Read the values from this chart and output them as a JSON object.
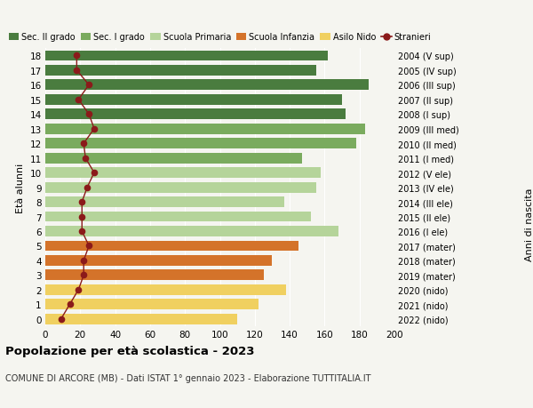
{
  "ages": [
    0,
    1,
    2,
    3,
    4,
    5,
    6,
    7,
    8,
    9,
    10,
    11,
    12,
    13,
    14,
    15,
    16,
    17,
    18
  ],
  "bar_values": [
    110,
    122,
    138,
    125,
    130,
    145,
    168,
    152,
    137,
    155,
    158,
    147,
    178,
    183,
    172,
    170,
    185,
    155,
    162
  ],
  "stranieri": [
    9,
    14,
    19,
    22,
    22,
    25,
    21,
    21,
    21,
    24,
    28,
    23,
    22,
    28,
    25,
    19,
    25,
    18,
    18
  ],
  "right_labels": [
    "2022 (nido)",
    "2021 (nido)",
    "2020 (nido)",
    "2019 (mater)",
    "2018 (mater)",
    "2017 (mater)",
    "2016 (I ele)",
    "2015 (II ele)",
    "2014 (III ele)",
    "2013 (IV ele)",
    "2012 (V ele)",
    "2011 (I med)",
    "2010 (II med)",
    "2009 (III med)",
    "2008 (I sup)",
    "2007 (II sup)",
    "2006 (III sup)",
    "2005 (IV sup)",
    "2004 (V sup)"
  ],
  "colors": {
    "sec2": "#4a7c3f",
    "sec1": "#7aab5e",
    "primaria": "#b5d49a",
    "infanzia": "#d4732a",
    "nido": "#f0d060",
    "stranieri": "#8b1a1a"
  },
  "bar_colors": [
    "#f0d060",
    "#f0d060",
    "#f0d060",
    "#d4732a",
    "#d4732a",
    "#d4732a",
    "#b5d49a",
    "#b5d49a",
    "#b5d49a",
    "#b5d49a",
    "#b5d49a",
    "#7aab5e",
    "#7aab5e",
    "#7aab5e",
    "#4a7c3f",
    "#4a7c3f",
    "#4a7c3f",
    "#4a7c3f",
    "#4a7c3f"
  ],
  "legend_labels": [
    "Sec. II grado",
    "Sec. I grado",
    "Scuola Primaria",
    "Scuola Infanzia",
    "Asilo Nido",
    "Stranieri"
  ],
  "legend_colors": [
    "#4a7c3f",
    "#7aab5e",
    "#b5d49a",
    "#d4732a",
    "#f0d060",
    "#8b1a1a"
  ],
  "title": "Popolazione per età scolastica - 2023",
  "subtitle": "COMUNE DI ARCORE (MB) - Dati ISTAT 1° gennaio 2023 - Elaborazione TUTTITALIA.IT",
  "ylabel_left": "Età alunni",
  "ylabel_right": "Anni di nascita",
  "xlim": [
    0,
    200
  ],
  "background_color": "#f5f5f0"
}
